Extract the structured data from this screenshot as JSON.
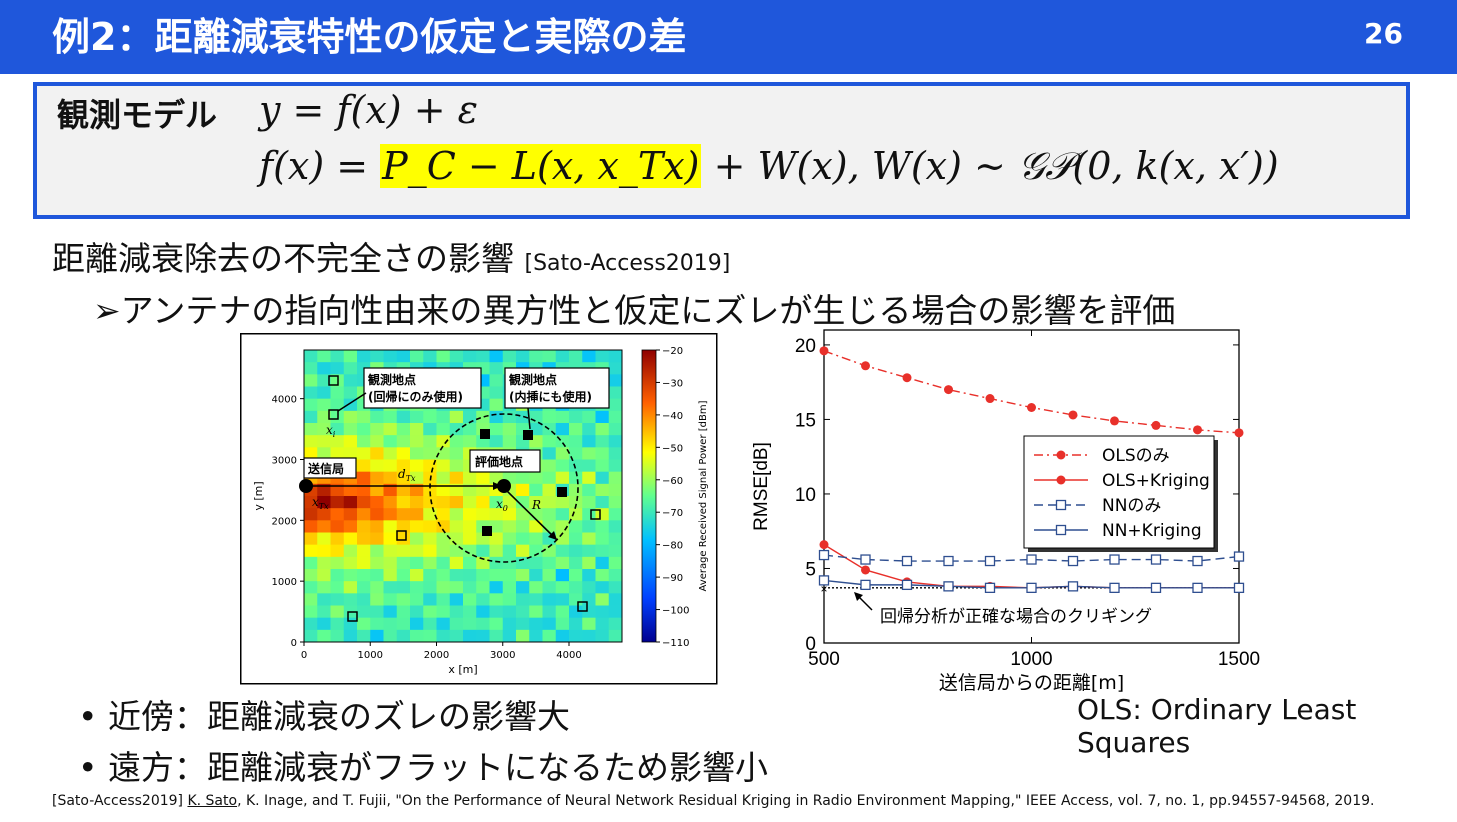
{
  "header": {
    "title": "例2：距離減衰特性の仮定と実際の差",
    "page_number": "26"
  },
  "model": {
    "label": "観測モデル",
    "eq1": "y = f(x) + ε",
    "eq2_left": "f(x) = ",
    "eq2_highlight": "P_C − L(x, x_Tx)",
    "eq2_right": " + W(x),     W(x) ∼ 𝒢𝒫(0, k(x, x′))"
  },
  "main_text": "距離減衰除去の不完全さの影響",
  "main_ref": "[Sato-Access2019]",
  "sub_text": "➢アンテナの指向性由来の異方性と仮定にズレが生じる場合の影響を評価",
  "bullets": [
    "•  近傍：距離減衰のズレの影響大",
    "•  遠方：距離減衰がフラットになるため影響小"
  ],
  "ols_note": "OLS: Ordinary Least Squares",
  "footer": {
    "ref": "[Sato-Access2019] ",
    "author": "K. Sato",
    "rest": ", K. Inage, and T. Fujii, \"On the Performance of Neural Network Residual Kriging in Radio Environment Mapping,\" IEEE Access, vol. 7, no. 1, pp.94557-94568, 2019."
  },
  "map_figure": {
    "xlabel": "x [m]",
    "ylabel": "y [m]",
    "xticks": [
      "0",
      "1000",
      "2000",
      "3000",
      "4000"
    ],
    "yticks": [
      "0",
      "1000",
      "2000",
      "3000",
      "4000"
    ],
    "colorbar_label": "Average Received Signal Power [dBm]",
    "colorbar_ticks": [
      "−20",
      "−30",
      "−40",
      "−50",
      "−60",
      "−70",
      "−80",
      "−90",
      "−100",
      "−110"
    ],
    "annotations": {
      "obs1": "観測地点",
      "obs1b": "(回帰にのみ使用)",
      "obs2": "観測地点",
      "obs2b": "(内挿にも使用)",
      "tx": "送信局",
      "eval": "評価地点",
      "xi": "x",
      "xi_sub": "i",
      "xtx": "x",
      "xtx_sub": "Tx",
      "x0": "x",
      "x0_sub": "0",
      "dtx": "d",
      "dtx_sub": "Tx",
      "R": "R"
    },
    "colors": {
      "hot": "#d42a1c",
      "warm": "#f2c63a",
      "mid": "#8fd27a",
      "cool": "#37b6e6",
      "cold": "#1a64c8"
    }
  },
  "chart_data": {
    "type": "line",
    "xlabel": "送信局からの距離[m]",
    "ylabel": "RMSE[dB]",
    "xlim": [
      500,
      1500
    ],
    "ylim": [
      0,
      21
    ],
    "xticks": [
      500,
      1000,
      1500
    ],
    "yticks": [
      0,
      5,
      10,
      15,
      20
    ],
    "x": [
      500,
      600,
      700,
      800,
      900,
      1000,
      1100,
      1200,
      1300,
      1400,
      1500
    ],
    "series": [
      {
        "name": "OLSのみ",
        "color": "#e8302a",
        "style": "dashdot",
        "marker": "circle",
        "values": [
          19.6,
          18.6,
          17.8,
          17.0,
          16.4,
          15.8,
          15.3,
          14.9,
          14.6,
          14.3,
          14.1
        ]
      },
      {
        "name": "OLS+Kriging",
        "color": "#e8302a",
        "style": "solid",
        "marker": "circle",
        "values": [
          6.6,
          4.9,
          4.1,
          3.8,
          3.8,
          3.7,
          3.8,
          3.7,
          3.7,
          3.7,
          3.7
        ]
      },
      {
        "name": "NNのみ",
        "color": "#2f4f90",
        "style": "dashed",
        "marker": "square",
        "values": [
          5.9,
          5.6,
          5.5,
          5.5,
          5.5,
          5.6,
          5.5,
          5.6,
          5.6,
          5.5,
          5.8
        ]
      },
      {
        "name": "NN+Kriging",
        "color": "#2f4f90",
        "style": "solid",
        "marker": "square",
        "values": [
          4.2,
          3.9,
          3.9,
          3.8,
          3.7,
          3.7,
          3.8,
          3.7,
          3.7,
          3.7,
          3.7
        ]
      }
    ],
    "reference_line": {
      "value": 3.7,
      "label": "回帰分析が正確な場合のクリギング"
    },
    "legend_position": "center-right"
  }
}
